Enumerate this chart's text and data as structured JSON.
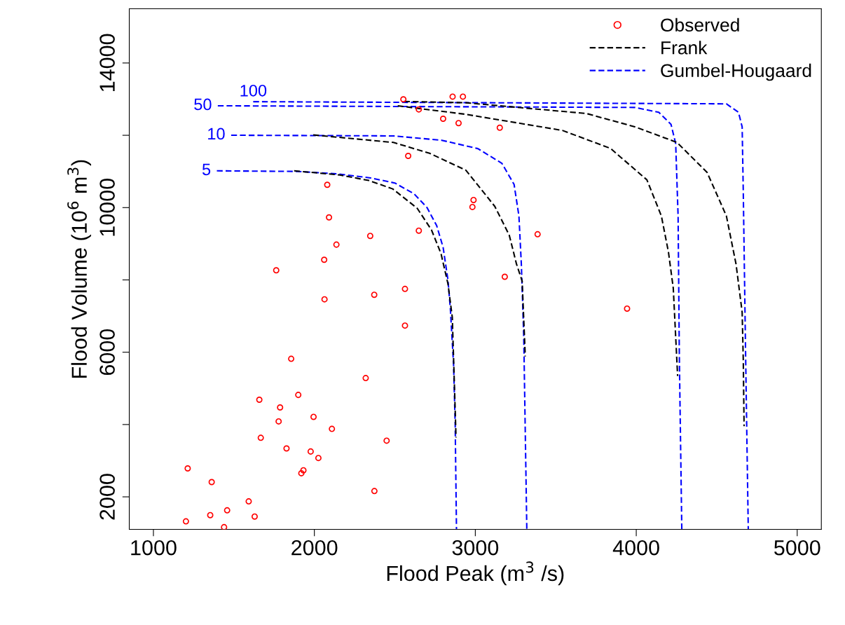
{
  "chart_data": {
    "type": "line",
    "xlabel": "Flood Peak (m$^{3}$ /s)",
    "ylabel": "Flood Volume (10$^{6}$ m$^{3}$)",
    "xlim": [
      850,
      5150
    ],
    "ylim": [
      1100,
      15500
    ],
    "xticks": [
      1000,
      2000,
      3000,
      4000,
      5000
    ],
    "yticks": [
      2000,
      {
        "value": 4000,
        "label": null
      },
      6000,
      {
        "value": 8000,
        "label": null
      },
      10000,
      {
        "value": 12000,
        "label": null
      },
      14000
    ],
    "grid": false,
    "legend": "top right",
    "annotations": [
      {
        "text": "5",
        "x": 1394,
        "y": 11017
      },
      {
        "text": "10",
        "x": 1483,
        "y": 12002
      },
      {
        "text": "50",
        "x": 1400,
        "y": 12816
      },
      {
        "text": "100",
        "x": 1620,
        "y": 12930
      }
    ],
    "series": [
      {
        "name": "Observed",
        "type": "scatter",
        "color": "#ff0000",
        "marker": "circle",
        "x": [
          1202,
          1353,
          1439,
          1458,
          1592,
          1629,
          1213,
          1362,
          1856,
          2319,
          1900,
          1658,
          1787,
          1995,
          1778,
          2109,
          1667,
          2449,
          1827,
          1977,
          2025,
          1932,
          1919,
          2373,
          2553,
          2859,
          2923,
          2649,
          2800,
          2896,
          3152,
          2583,
          2080,
          2989,
          2982,
          2091,
          2649,
          2347,
          2137,
          2061,
          1763,
          3183,
          2563,
          2063,
          2372,
          2563,
          3387,
          3943
        ],
        "values": [
          1322,
          1494,
          1161,
          1627,
          1874,
          1455,
          2786,
          2408,
          5818,
          5285,
          4819,
          4686,
          4473,
          4212,
          4087,
          3880,
          3633,
          3554,
          3339,
          3254,
          3074,
          2734,
          2653,
          2160,
          12995,
          13069,
          13069,
          12716,
          12457,
          12337,
          12209,
          11430,
          10630,
          10210,
          10017,
          9729,
          9362,
          9217,
          8976,
          8557,
          8265,
          8087,
          7751,
          7464,
          7589,
          6737,
          9263,
          7206
        ]
      },
      {
        "name": "Frank",
        "color": "#000000",
        "line_style": "dashed",
        "x": [
          1874,
          2158,
          2338,
          2487,
          2639,
          2728,
          2787,
          2830,
          2857,
          2877,
          2880
        ],
        "values": [
          11017,
          10903,
          10750,
          10517,
          9981,
          9380,
          8725,
          7894,
          6966,
          4106,
          3640
        ]
      },
      {
        "color": "#000000",
        "line_style": "dashed",
        "x": [
          1993,
          2491,
          2716,
          2941,
          3121,
          3211,
          3256,
          3291,
          3309,
          3310
        ],
        "values": [
          12010,
          11802,
          11502,
          11035,
          10035,
          9237,
          8437,
          7971,
          6039,
          5884
        ]
      },
      {
        "color": "#000000",
        "line_style": "dashed",
        "x": [
          2518,
          2941,
          3541,
          3840,
          4066,
          4156,
          4200,
          4230,
          4257
        ],
        "values": [
          12815,
          12580,
          12135,
          11637,
          10769,
          9770,
          8771,
          7772,
          5343
        ]
      },
      {
        "color": "#000000",
        "line_style": "dashed",
        "x": [
          2557,
          2941,
          3691,
          3991,
          4253,
          4440,
          4560,
          4620,
          4658,
          4665,
          4670
        ],
        "values": [
          12937,
          12900,
          12602,
          12235,
          11803,
          10974,
          9770,
          8437,
          7105,
          5772,
          3952
        ]
      },
      {
        "name": "Gumbel-Hougaard",
        "color": "#0000ff",
        "line_style": "dashed",
        "x": [
          1394,
          1900,
          2150,
          2350,
          2500,
          2620,
          2700,
          2760,
          2800,
          2830,
          2845,
          2865,
          2875,
          2883
        ],
        "values": [
          11017,
          11000,
          10930,
          10820,
          10680,
          10380,
          10000,
          9500,
          8900,
          8000,
          7200,
          5650,
          4000,
          1100
        ]
      },
      {
        "color": "#0000ff",
        "line_style": "dashed",
        "x": [
          1483,
          2491,
          2791,
          3016,
          3165,
          3241,
          3271,
          3286,
          3301,
          3320
        ],
        "values": [
          12002,
          11983,
          11863,
          11631,
          11225,
          10640,
          9768,
          8436,
          6438,
          1100
        ]
      },
      {
        "color": "#0000ff",
        "line_style": "dashed",
        "x": [
          1400,
          3991,
          4140,
          4216,
          4245,
          4260,
          4268,
          4283
        ],
        "values": [
          12816,
          12770,
          12636,
          12302,
          11770,
          9768,
          5772,
          1100
        ]
      },
      {
        "color": "#0000ff",
        "line_style": "dashed",
        "x": [
          1620,
          4560,
          4635,
          4658,
          4665,
          4680,
          4696
        ],
        "values": [
          12930,
          12870,
          12636,
          12235,
          10432,
          5772,
          1100
        ]
      }
    ]
  }
}
